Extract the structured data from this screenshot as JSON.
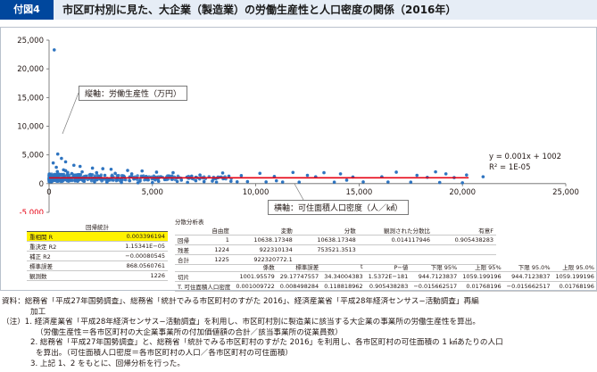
{
  "figure": {
    "tag": "付図4",
    "title": "市区町村別に見た、大企業（製造業）の労働生産性と人口密度の関係（2016年）"
  },
  "chart_data": {
    "type": "scatter",
    "x_ticks": [
      "0",
      "5,000",
      "10,000",
      "15,000",
      "20,000",
      "25,000"
    ],
    "y_ticks": [
      "25,000",
      "20,000",
      "15,000",
      "10,000",
      "5,000",
      "0",
      "-5,000"
    ],
    "xlim": [
      0,
      25000
    ],
    "ylim": [
      -5000,
      25000
    ],
    "grid": false,
    "y_callout": "縦軸：労働生産性（万円）",
    "x_callout": "横軸：可住面積人口密度（人／㎢）",
    "trendline": {
      "slope": 0.001,
      "intercept": 1002,
      "x_range": [
        0,
        20300
      ],
      "equation": "y = 0.001x + 1002",
      "r2": "R² = 1E-05"
    },
    "points": [
      [
        250,
        23300
      ],
      [
        420,
        5150
      ],
      [
        600,
        4400
      ],
      [
        800,
        3800
      ],
      [
        200,
        3600
      ],
      [
        1200,
        3200
      ],
      [
        1500,
        3000
      ],
      [
        350,
        2850
      ],
      [
        2100,
        2700
      ],
      [
        2600,
        2600
      ],
      [
        3000,
        2500
      ],
      [
        700,
        2400
      ],
      [
        3800,
        2300
      ],
      [
        4500,
        2200
      ],
      [
        5200,
        2000
      ],
      [
        6000,
        1900
      ],
      [
        900,
        1950
      ],
      [
        8400,
        1850
      ],
      [
        10200,
        1800
      ],
      [
        11800,
        1950
      ],
      [
        13300,
        1900
      ],
      [
        14100,
        1700
      ],
      [
        16800,
        2000
      ],
      [
        18700,
        2050
      ],
      [
        19200,
        1700
      ],
      [
        20200,
        1500
      ],
      [
        17800,
        1450
      ],
      [
        12500,
        1450
      ],
      [
        9300,
        1400
      ],
      [
        7300,
        1500
      ],
      [
        1800,
        1300
      ],
      [
        2400,
        1100
      ],
      [
        3300,
        900
      ],
      [
        4100,
        800
      ],
      [
        4800,
        650
      ],
      [
        5600,
        700
      ],
      [
        6400,
        600
      ],
      [
        7100,
        500
      ],
      [
        7900,
        450
      ],
      [
        8800,
        400
      ],
      [
        9600,
        350
      ],
      [
        10500,
        300
      ],
      [
        11300,
        280
      ],
      [
        12100,
        250
      ],
      [
        13800,
        250
      ],
      [
        15200,
        300
      ],
      [
        16400,
        280
      ],
      [
        17500,
        250
      ],
      [
        18900,
        200
      ],
      [
        20000,
        150
      ],
      [
        21000,
        1200
      ],
      [
        300,
        1100
      ],
      [
        500,
        900
      ],
      [
        1000,
        700
      ],
      [
        1400,
        550
      ],
      [
        1700,
        400
      ],
      [
        2200,
        300
      ],
      [
        2800,
        250
      ],
      [
        3500,
        200
      ],
      [
        4300,
        150
      ],
      [
        5000,
        180
      ],
      [
        6700,
        220
      ],
      [
        8100,
        260
      ],
      [
        600,
        1600
      ],
      [
        1100,
        1750
      ],
      [
        1300,
        1500
      ],
      [
        2000,
        1600
      ],
      [
        2700,
        1450
      ],
      [
        3600,
        1350
      ],
      [
        4700,
        1250
      ],
      [
        5800,
        1350
      ],
      [
        6900,
        1300
      ],
      [
        8700,
        1300
      ],
      [
        10900,
        1250
      ],
      [
        12900,
        1200
      ],
      [
        14700,
        1150
      ],
      [
        16100,
        1200
      ],
      [
        18300,
        1100
      ],
      [
        19600,
        1050
      ],
      [
        400,
        2100
      ],
      [
        800,
        2250
      ],
      [
        1600,
        2050
      ],
      [
        2300,
        1900
      ],
      [
        3200,
        1800
      ],
      [
        4000,
        1700
      ],
      [
        700,
        1200
      ],
      [
        900,
        1050
      ],
      [
        1500,
        900
      ],
      [
        2500,
        750
      ],
      [
        3100,
        600
      ],
      [
        3900,
        500
      ],
      [
        4400,
        450
      ],
      [
        5300,
        400
      ],
      [
        6200,
        380
      ],
      [
        7500,
        350
      ],
      [
        9100,
        320
      ],
      [
        11000,
        500
      ],
      [
        14400,
        600
      ]
    ]
  },
  "regression_stats": {
    "title": "回帰統計",
    "rows": [
      {
        "label": "重相関 R",
        "value": "0.003396194",
        "highlight": true
      },
      {
        "label": "重決定 R2",
        "value": "1.15341E−05"
      },
      {
        "label": "補正 R2",
        "value": "−0.00080545"
      },
      {
        "label": "標準誤差",
        "value": "868.0560761"
      },
      {
        "label": "観測数",
        "value": "1226"
      }
    ]
  },
  "anova": {
    "title": "分散分析表",
    "header": [
      "",
      "自由度",
      "変動",
      "分散",
      "観測された分散比",
      "有意F"
    ],
    "rows": [
      [
        "回帰",
        "1",
        "10638.17348",
        "10638.17348",
        "0.014117946",
        "0.905438283"
      ],
      [
        "残差",
        "1224",
        "922310134",
        "753521.3513",
        "",
        ""
      ],
      [
        "合計",
        "1225",
        "922320772.1",
        "",
        "",
        ""
      ]
    ]
  },
  "coefficients": {
    "header": [
      "",
      "係数",
      "標準誤差",
      "t",
      "P−値",
      "下限 95%",
      "上限 95%",
      "下限 95.0%",
      "上限 95.0%"
    ],
    "rows": [
      [
        "切片",
        "1001.95579",
        "29.17747557",
        "34.34004383",
        "1.5372E−181",
        "944.7123837",
        "1059.199196",
        "944.7123837",
        "1059.199196"
      ],
      [
        "T. 可住面積人口密度",
        "0.001009722",
        "0.008498284",
        "0.118818962",
        "0.905438283",
        "−0.015662517",
        "0.01768196",
        "−0.015662517",
        "0.01768196"
      ]
    ]
  },
  "notes": [
    "資料：総務省「平成27年国勢調査」、総務省「統計でみる市区町村のすがた 2016」、経済産業省「平成28年経済センサス−活動調査」再編",
    "加工",
    "（注）1. 経済産業省「平成28年経済センサス−活動調査」を利用し、市区町村別に製造業に該当する大企業の事業所の労働生産性を算出。",
    "（労働生産性＝各市区町村の大企業事業所の付加価値額の合計／該当事業所の従業員数）",
    "2. 総務省「平成27年国勢調査」と、総務省「統計でみる市区町村のすがた 2016」を利用し、各市区町村の可住面積の 1 ㎢あたりの人口",
    "を算出。（可住面積人口密度＝各市区町村の人口／各市区町村の可住面積）",
    "3. 上記 1、2 をもとに、回帰分析を行った。"
  ]
}
